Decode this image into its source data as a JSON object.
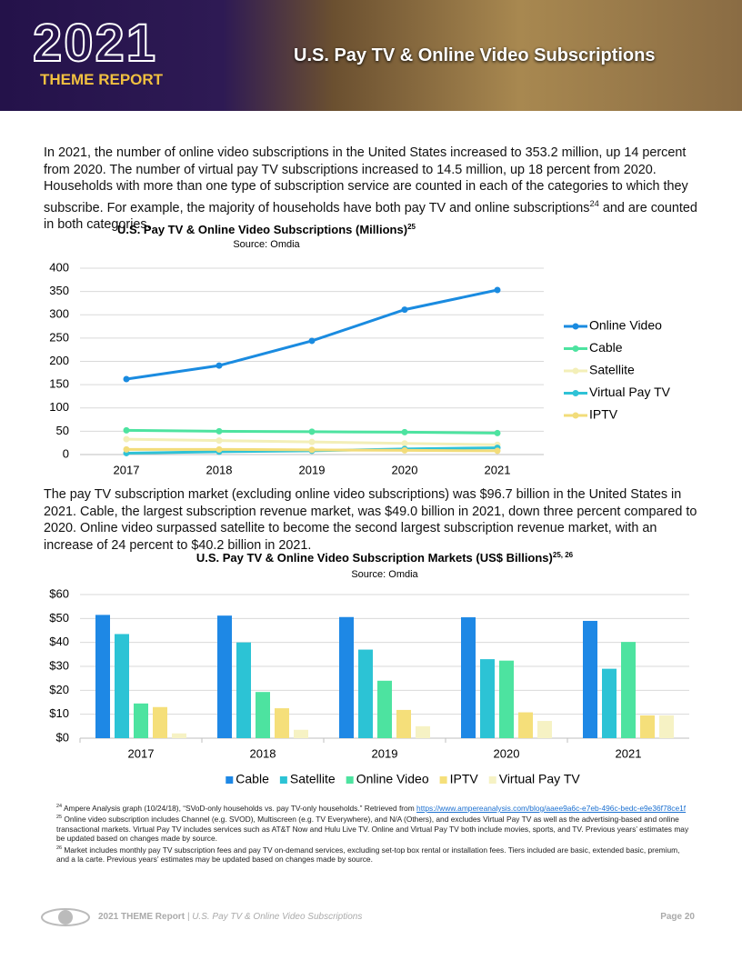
{
  "header": {
    "year": "2021",
    "report": "THEME REPORT",
    "title": "U.S. Pay TV & Online Video Subscriptions"
  },
  "paragraphs": [
    {
      "text": "In 2021, the number of online video subscriptions in the United States increased to 353.2 million, up 14 percent from 2020. The number of virtual pay TV subscriptions increased to 14.5 million, up 18 percent from 2020. Households with more than one type of subscription service are counted in each of the categories to which they subscribe. For example, the majority of households have both pay TV and online subscriptions",
      "note": "24",
      "tail": " and are counted in both categories."
    },
    {
      "text": "The pay TV subscription market (excluding online video subscriptions) was $96.7 billion in the United States in 2021. Cable, the largest subscription revenue market, was $49.0 billion in 2021, down three percent compared to 2020. Online video surpassed satellite to become the second largest subscription revenue market, with an increase of 24 percent to $40.2 billion in 2021."
    }
  ],
  "chart_data": [
    {
      "type": "line",
      "title": "U.S. Pay TV & Online Video Subscriptions (Millions)",
      "title_note": "25",
      "subtitle": "Source: Omdia",
      "categories": [
        "2017",
        "2018",
        "2019",
        "2020",
        "2021"
      ],
      "series": [
        {
          "name": "Online Video",
          "color": "#1a8be0",
          "values": [
            162,
            191,
            244,
            311,
            353.2
          ]
        },
        {
          "name": "Cable",
          "color": "#4de3a0",
          "values": [
            52,
            50,
            49,
            48,
            46
          ]
        },
        {
          "name": "Satellite",
          "color": "#f3efb8",
          "values": [
            33,
            30,
            27,
            24,
            21
          ]
        },
        {
          "name": "Virtual Pay TV",
          "color": "#2fc2d6",
          "values": [
            3,
            6,
            8,
            12,
            14.5
          ]
        },
        {
          "name": "IPTV",
          "color": "#f2dc7a",
          "values": [
            11,
            11,
            10,
            9,
            8
          ]
        }
      ],
      "ylim": [
        0,
        400
      ],
      "yticks": [
        0,
        50,
        100,
        150,
        200,
        250,
        300,
        350,
        400
      ],
      "grid": true,
      "legend": "right"
    },
    {
      "type": "bar",
      "title": "U.S. Pay TV & Online Video Subscription Markets (US$ Billions)",
      "title_note": "25, 26",
      "subtitle": "Source: Omdia",
      "categories": [
        "2017",
        "2018",
        "2019",
        "2020",
        "2021"
      ],
      "series": [
        {
          "name": "Cable",
          "color": "#1e88e5",
          "values": [
            51.5,
            51.2,
            50.6,
            50.5,
            49.0
          ]
        },
        {
          "name": "Satellite",
          "color": "#2cc3d5",
          "values": [
            43.5,
            40.0,
            37.0,
            33.0,
            29.0
          ]
        },
        {
          "name": "Online Video",
          "color": "#4de3a0",
          "values": [
            14.5,
            19.3,
            24.0,
            32.4,
            40.2
          ]
        },
        {
          "name": "IPTV",
          "color": "#f5df7a",
          "values": [
            13.0,
            12.5,
            11.8,
            10.8,
            9.5
          ]
        },
        {
          "name": "Virtual Pay TV",
          "color": "#f6f2c4",
          "values": [
            2.0,
            3.5,
            5.0,
            7.2,
            9.5
          ]
        }
      ],
      "ylim": [
        0,
        60
      ],
      "yticks": [
        {
          "value": 0,
          "label": "$0"
        },
        {
          "value": 10,
          "label": "$10"
        },
        {
          "value": 20,
          "label": "$20"
        },
        {
          "value": 30,
          "label": "$30"
        },
        {
          "value": 40,
          "label": "$40"
        },
        {
          "value": 50,
          "label": "$50"
        },
        {
          "value": 60,
          "label": "$60"
        }
      ],
      "grid": true,
      "legend": "bottom"
    }
  ],
  "footnotes": [
    {
      "number": "24",
      "text": "Ampere Analysis graph (10/24/18), “SVoD-only households vs. pay TV-only households.” Retrieved from ",
      "link": "https://www.ampereanalysis.com/blog/aaee9a6c-e7eb-496c-bedc-e9e36f78ce1f"
    },
    {
      "number": "25",
      "text": "Online video subscription includes Channel (e.g. SVOD), Multiscreen (e.g. TV Everywhere), and N/A (Others), and excludes Virtual Pay TV as well as the advertising-based and online transactional markets. Virtual Pay TV includes services such as AT&T Now and Hulu Live TV. Online and Virtual Pay TV both include movies, sports, and TV. Previous years’ estimates may be updated based on changes made by source."
    },
    {
      "number": "26",
      "text": "Market includes monthly pay TV subscription fees and pay TV on-demand services, excluding set-top box rental or installation fees. Tiers included are basic, extended basic, premium, and a la carte. Previous years’ estimates may be updated based on changes made by source."
    }
  ],
  "footer": {
    "report": "2021 THEME Report",
    "section": "| U.S. Pay TV & Online Video Subscriptions",
    "page": "Page 20"
  }
}
